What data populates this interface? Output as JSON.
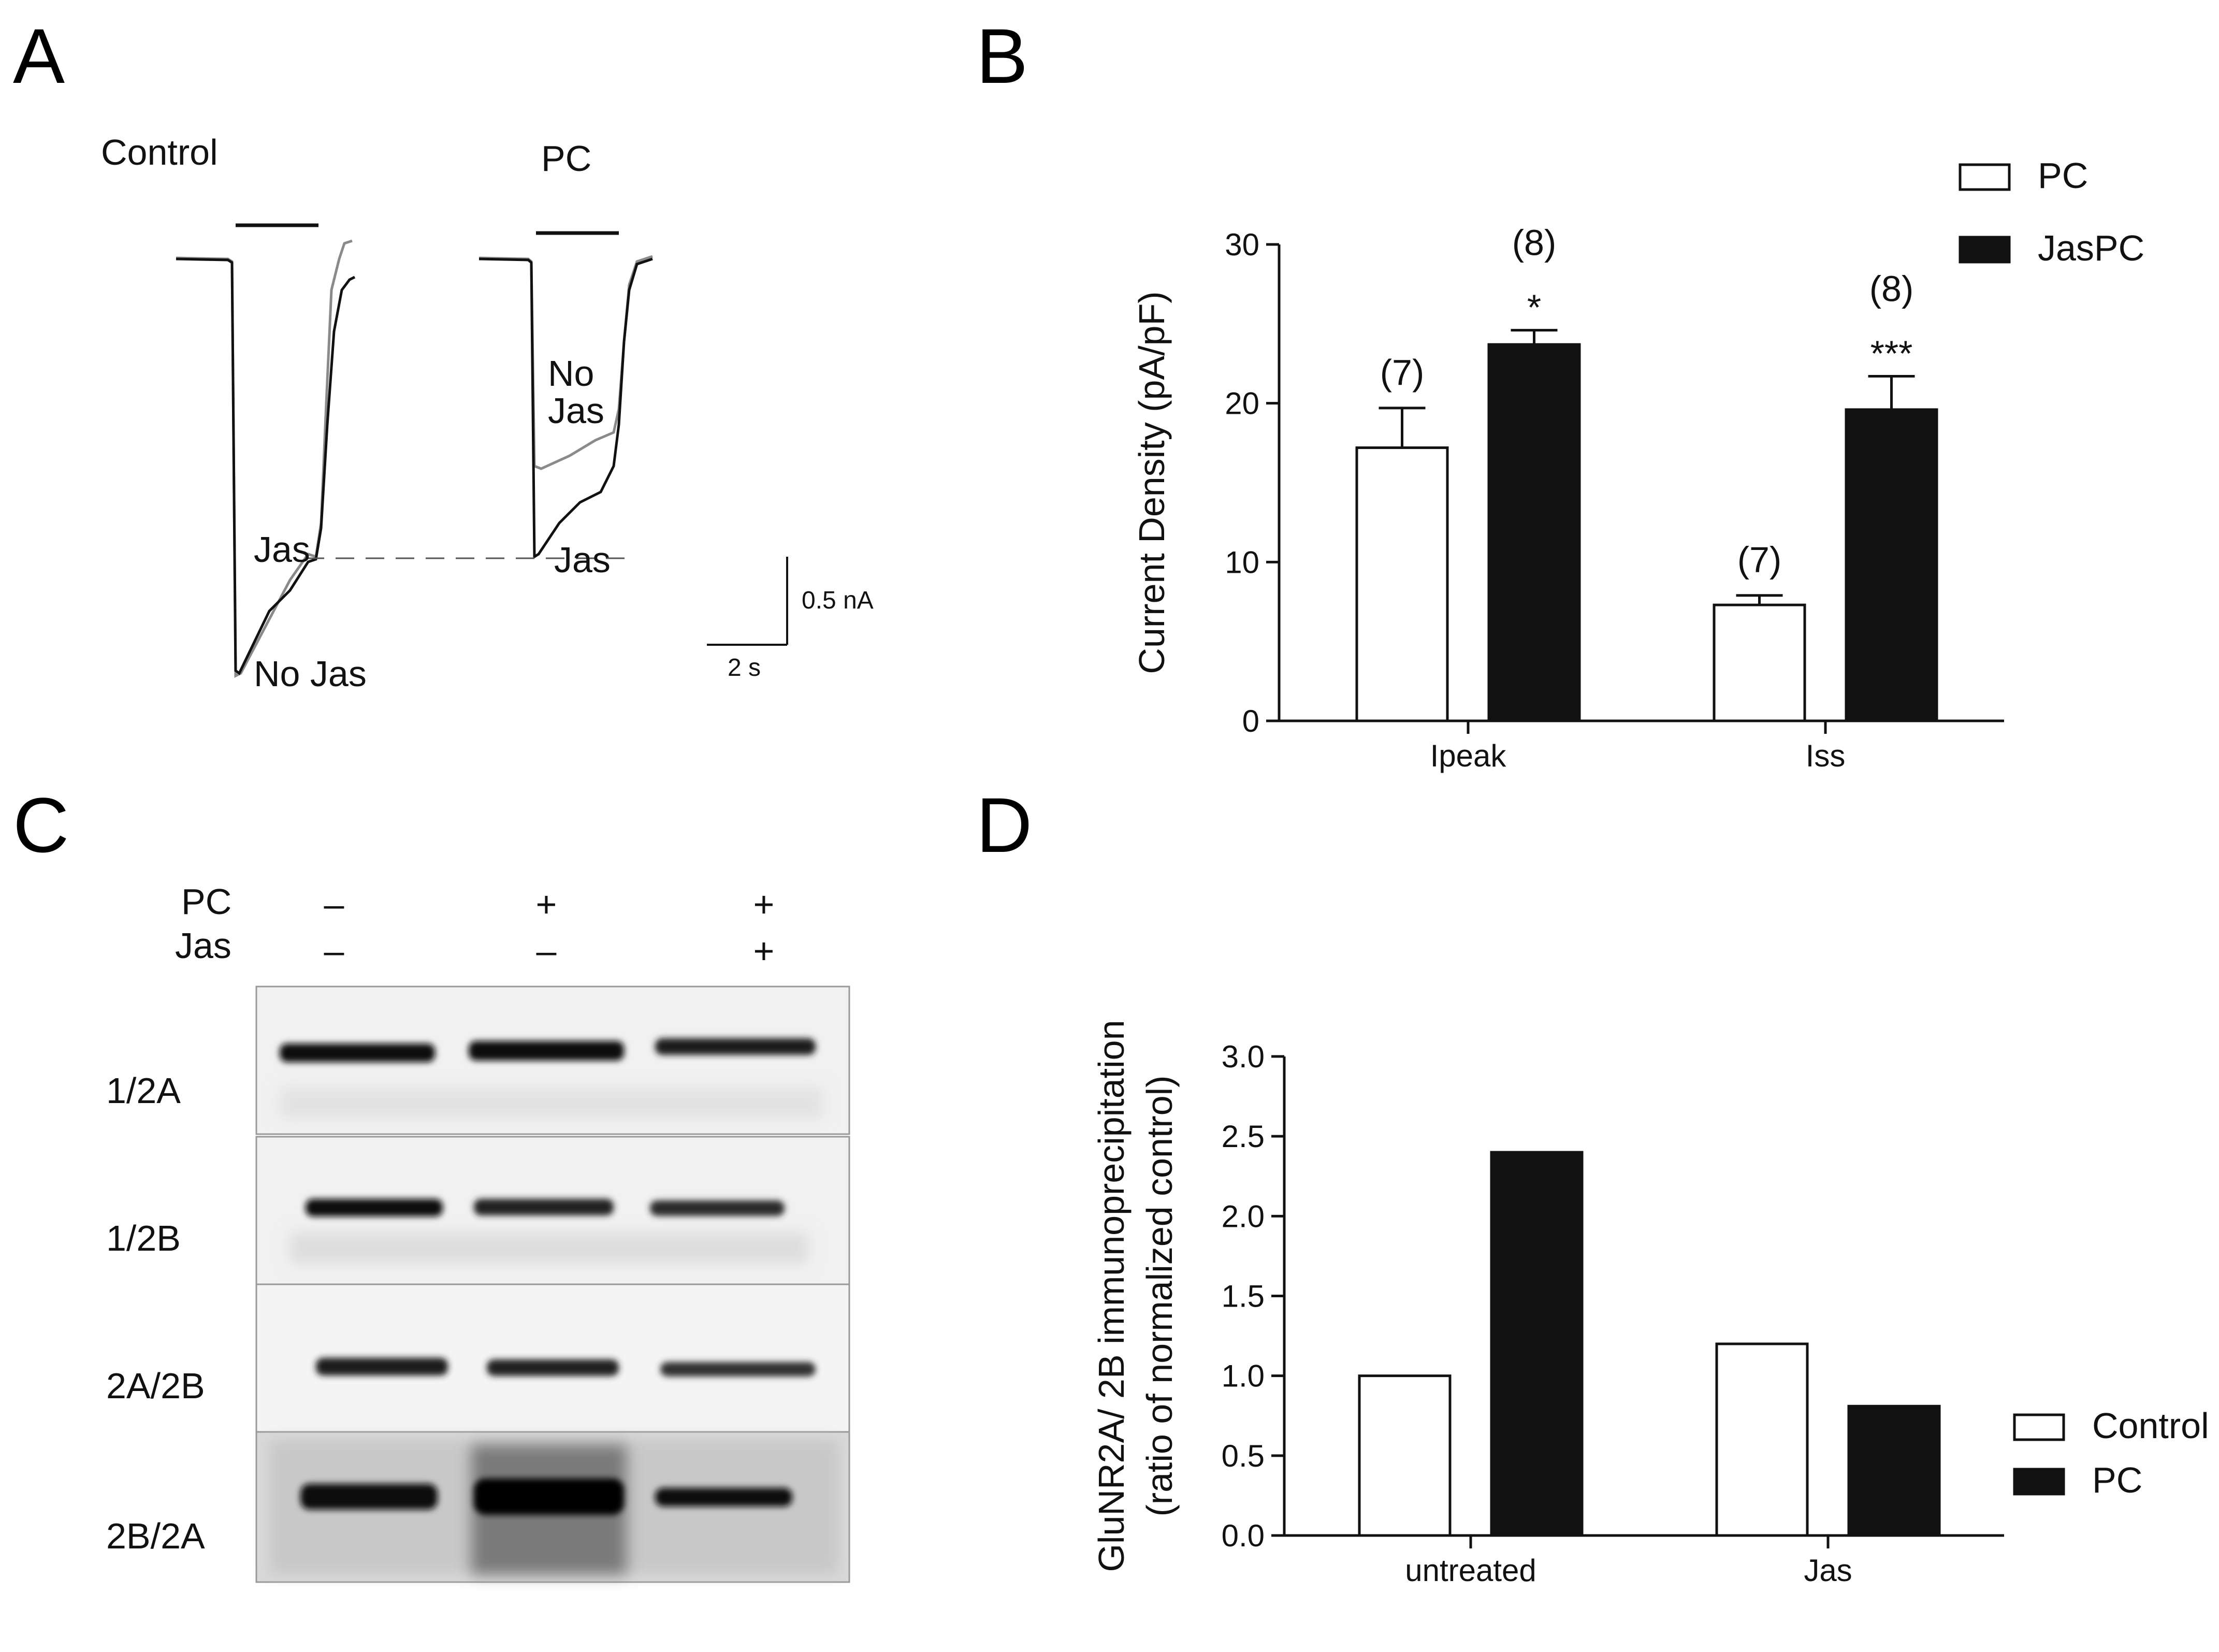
{
  "panels": {
    "A": {
      "letter": "A",
      "titles": [
        "Control",
        "PC"
      ],
      "trace_labels": {
        "control_jas": "Jas",
        "control_nojas": "No Jas",
        "pc_nojas": "No\nJas",
        "pc_jas": "Jas"
      },
      "scale_bar": {
        "y_label": "0.5 nA",
        "x_label": "2 s"
      }
    },
    "B": {
      "letter": "B"
    },
    "C": {
      "letter": "C",
      "row_labels": [
        "PC",
        "Jas"
      ],
      "conditions": {
        "PC": [
          "–",
          "+",
          "+"
        ],
        "Jas": [
          "–",
          "–",
          "+"
        ]
      },
      "blot_labels": [
        "1/2A",
        "1/2B",
        "2A/2B",
        "2B/2A"
      ]
    },
    "D": {
      "letter": "D"
    }
  },
  "chart_data": [
    {
      "panel": "B",
      "type": "bar",
      "categories": [
        "Ipeak",
        "Iss"
      ],
      "ylabel": "Current Density (pA/pF)",
      "ylim": [
        0,
        30
      ],
      "yticks": [
        0,
        10,
        20,
        30
      ],
      "legend_position": "top-right",
      "series": [
        {
          "name": "PC",
          "color": "#ffffff",
          "values": [
            17.2,
            7.3
          ],
          "errors": [
            2.5,
            0.6
          ],
          "n_labels": [
            "(7)",
            "(7)"
          ],
          "sig": [
            "",
            ""
          ]
        },
        {
          "name": "JasPC",
          "color": "#111111",
          "values": [
            23.7,
            19.6
          ],
          "errors": [
            0.9,
            2.1
          ],
          "n_labels": [
            "(8)",
            "(8)"
          ],
          "sig": [
            "*",
            "***"
          ]
        }
      ]
    },
    {
      "panel": "D",
      "type": "bar",
      "categories": [
        "untreated",
        "Jas"
      ],
      "ylabel": "GluNR2A/ 2B immunoprecipitation\n(ratio of normalized control)",
      "ylim": [
        0,
        3.0
      ],
      "yticks": [
        "0.0",
        "0.5",
        "1.0",
        "1.5",
        "2.0",
        "2.5",
        "3.0"
      ],
      "legend_position": "bottom-right",
      "series": [
        {
          "name": "Control",
          "color": "#ffffff",
          "values": [
            1.0,
            1.2
          ]
        },
        {
          "name": "PC",
          "color": "#111111",
          "values": [
            2.4,
            0.81
          ]
        }
      ]
    }
  ]
}
